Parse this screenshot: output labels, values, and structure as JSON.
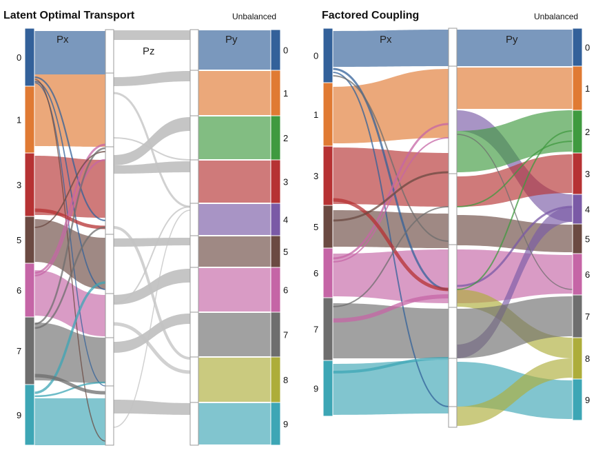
{
  "panels": [
    {
      "id": "left",
      "title": "Latent Optimal Transport",
      "subtitle": "Unbalanced",
      "source_label": "Px",
      "middle_label": "Pz",
      "target_label": "Py",
      "source_nodes": [
        "0",
        "1",
        "3",
        "5",
        "6",
        "7",
        "9"
      ],
      "target_nodes": [
        "0",
        "1",
        "2",
        "3",
        "4",
        "5",
        "6",
        "7",
        "8",
        "9"
      ]
    },
    {
      "id": "right",
      "title": "Factored Coupling",
      "subtitle": "Unbalanced",
      "source_label": "Px",
      "target_label": "Py",
      "source_nodes": [
        "0",
        "1",
        "3",
        "5",
        "6",
        "7",
        "9"
      ],
      "target_nodes": [
        "0",
        "1",
        "2",
        "3",
        "4",
        "5",
        "6",
        "7",
        "8",
        "9"
      ]
    }
  ],
  "class_colors": {
    "0": "#33619a",
    "1": "#e07a33",
    "2": "#3f9a3f",
    "3": "#b63233",
    "4": "#7a5aa6",
    "5": "#6b4a42",
    "6": "#c565a6",
    "7": "#6e6e6e",
    "8": "#adad3a",
    "9": "#3da6b5"
  },
  "flow_gray": "#c2c2c2"
}
